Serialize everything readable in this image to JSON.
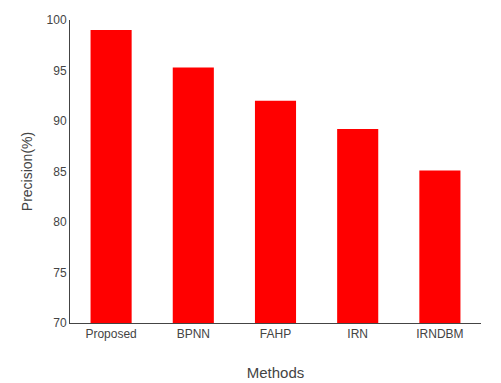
{
  "chart_data": {
    "type": "bar",
    "categories": [
      "Proposed",
      "BPNN",
      "FAHP",
      "IRN",
      "IRNDBM"
    ],
    "values": [
      99.0,
      95.3,
      92.0,
      89.2,
      85.1
    ],
    "color": "#ff0000",
    "xlabel": "Methods",
    "ylabel": "Precision(%)",
    "ylim": [
      70,
      100
    ],
    "yticks": [
      70,
      75,
      80,
      85,
      90,
      95,
      100
    ],
    "grid": false
  }
}
